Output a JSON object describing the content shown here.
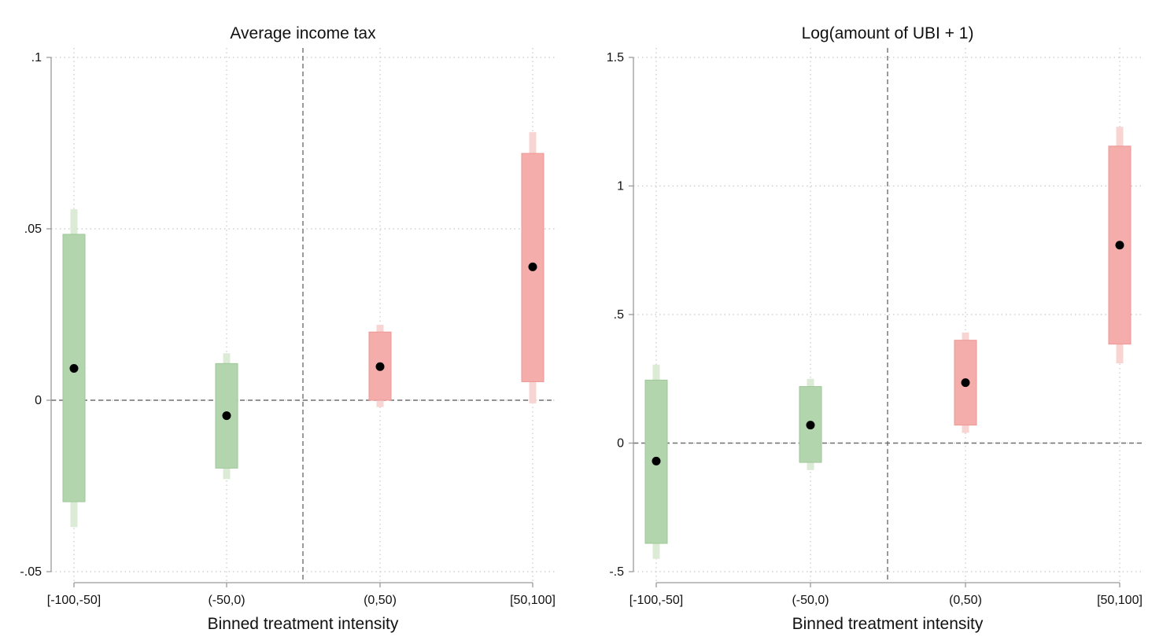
{
  "colors": {
    "negative_ci95": "#dcebd6",
    "negative_ci90": "#b3d5ae",
    "negative_ci90_stroke": "#9ec798",
    "positive_ci95": "#f8d5d3",
    "positive_ci90": "#f4adab",
    "positive_ci90_stroke": "#ec9896",
    "point": "#000000"
  },
  "chart_data": [
    {
      "type": "scatter",
      "title": "Average income tax",
      "xlabel": "Binned treatment intensity",
      "ylabel": "",
      "categories": [
        "[-100,-50]",
        "(-50,0)",
        "(0,50)",
        "[50,100]"
      ],
      "ylim": [
        -0.05,
        0.1
      ],
      "yticks": [
        -0.05,
        0,
        0.05,
        0.1
      ],
      "ytick_labels": [
        "-.05",
        "0",
        ".05",
        ".1"
      ],
      "grid": true,
      "legend": "none",
      "reference_lines": {
        "y": 0,
        "x_between_categories": [
          1,
          2
        ]
      },
      "points": [
        {
          "category": "[-100,-50]",
          "estimate": 0.0093,
          "ci90": [
            -0.0296,
            0.0484
          ],
          "ci95": [
            -0.037,
            0.0557
          ],
          "group": "negative"
        },
        {
          "category": "(-50,0)",
          "estimate": -0.0045,
          "ci90": [
            -0.0198,
            0.0107
          ],
          "ci95": [
            -0.023,
            0.0137
          ],
          "group": "negative"
        },
        {
          "category": "(0,50)",
          "estimate": 0.0098,
          "ci90": [
            0.0,
            0.0199
          ],
          "ci95": [
            -0.002,
            0.022
          ],
          "group": "positive"
        },
        {
          "category": "[50,100]",
          "estimate": 0.0389,
          "ci90": [
            0.0054,
            0.072
          ],
          "ci95": [
            -0.0009,
            0.0782
          ],
          "group": "positive"
        }
      ]
    },
    {
      "type": "scatter",
      "title": "Log(amount of UBI + 1)",
      "xlabel": "Binned treatment intensity",
      "ylabel": "",
      "categories": [
        "[-100,-50]",
        "(-50,0)",
        "(0,50)",
        "[50,100]"
      ],
      "ylim": [
        -0.5,
        1.5
      ],
      "yticks": [
        -0.5,
        0,
        0.5,
        1,
        1.5
      ],
      "ytick_labels": [
        "-.5",
        "0",
        ".5",
        "1",
        "1.5"
      ],
      "grid": true,
      "legend": "none",
      "reference_lines": {
        "y": 0,
        "x_between_categories": [
          1,
          2
        ]
      },
      "points": [
        {
          "category": "[-100,-50]",
          "estimate": -0.07,
          "ci90": [
            -0.39,
            0.245
          ],
          "ci95": [
            -0.45,
            0.305
          ],
          "group": "negative"
        },
        {
          "category": "(-50,0)",
          "estimate": 0.07,
          "ci90": [
            -0.075,
            0.22
          ],
          "ci95": [
            -0.105,
            0.25
          ],
          "group": "negative"
        },
        {
          "category": "(0,50)",
          "estimate": 0.235,
          "ci90": [
            0.07,
            0.4
          ],
          "ci95": [
            0.04,
            0.43
          ],
          "group": "positive"
        },
        {
          "category": "[50,100]",
          "estimate": 0.77,
          "ci90": [
            0.385,
            1.155
          ],
          "ci95": [
            0.31,
            1.23
          ],
          "group": "positive"
        }
      ]
    }
  ]
}
